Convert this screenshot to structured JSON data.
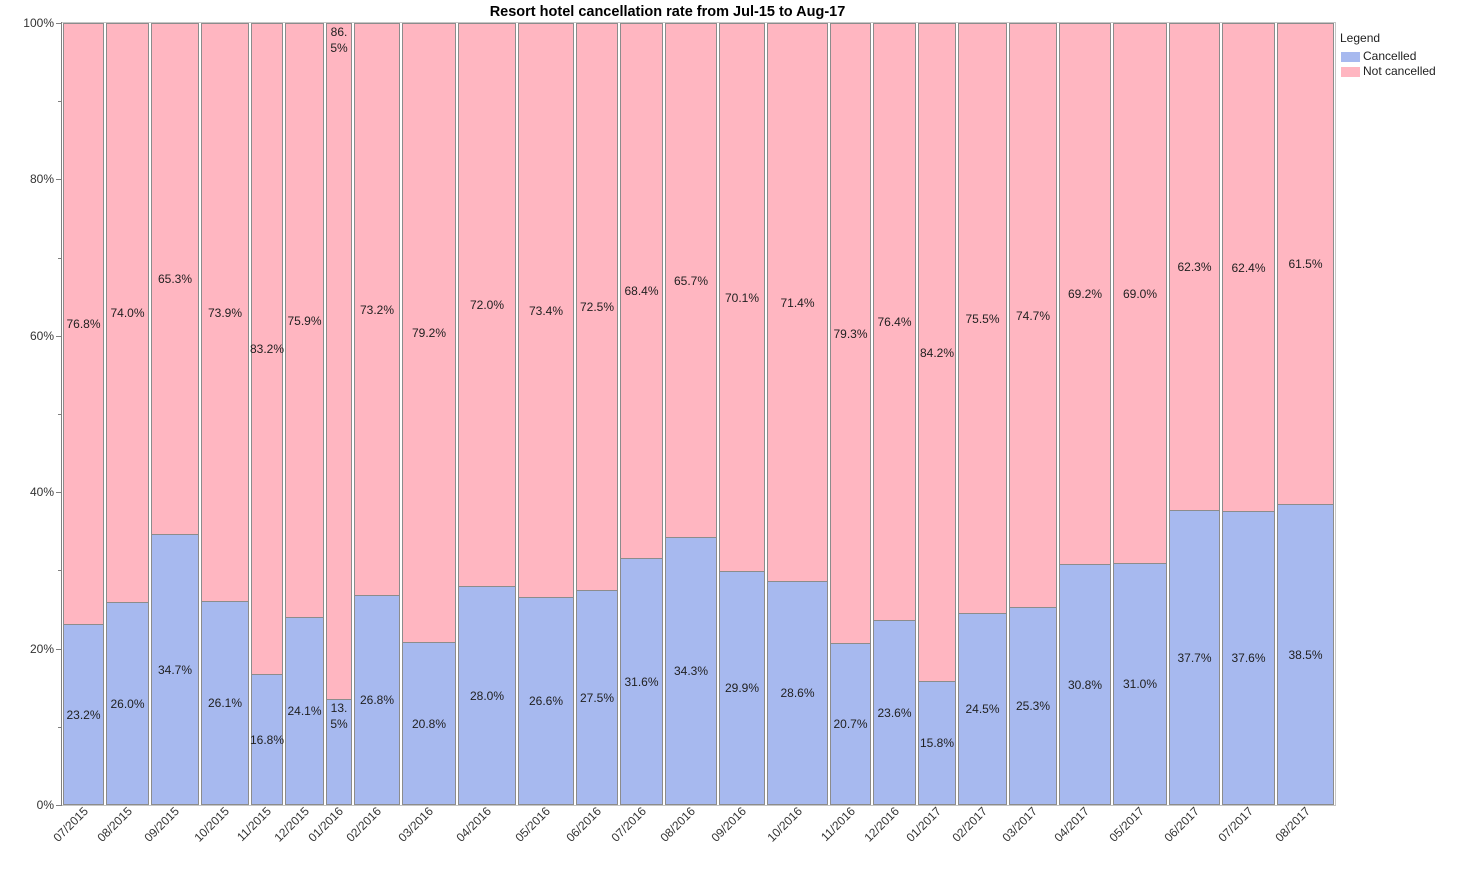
{
  "chart_data": {
    "type": "bar",
    "stacked": true,
    "normalized": true,
    "title": "Resort hotel cancellation rate from Jul-15 to Aug-17",
    "ylim": [
      0,
      100
    ],
    "yticks": [
      "0%",
      "20%",
      "40%",
      "60%",
      "80%",
      "100%"
    ],
    "grid": false,
    "legend": {
      "title": "Legend",
      "position": "right"
    },
    "categories": [
      "07/2015",
      "08/2015",
      "09/2015",
      "10/2015",
      "11/2015",
      "12/2015",
      "01/2016",
      "02/2016",
      "03/2016",
      "04/2016",
      "05/2016",
      "06/2016",
      "07/2016",
      "08/2016",
      "09/2016",
      "10/2016",
      "11/2016",
      "12/2016",
      "01/2017",
      "02/2017",
      "03/2017",
      "04/2017",
      "05/2017",
      "06/2017",
      "07/2017",
      "08/2017"
    ],
    "share": [
      3.4,
      3.5,
      3.9,
      3.9,
      2.7,
      3.2,
      2.2,
      3.8,
      4.4,
      4.7,
      4.5,
      3.5,
      3.5,
      4.2,
      3.8,
      4.9,
      3.4,
      3.5,
      3.2,
      4.0,
      3.9,
      4.2,
      4.4,
      4.2,
      4.3,
      4.6
    ],
    "series": [
      {
        "name": "Cancelled",
        "color": "#a7b9ef",
        "values": [
          23.2,
          26.0,
          34.7,
          26.1,
          16.8,
          24.1,
          13.5,
          26.8,
          20.8,
          28.0,
          26.6,
          27.5,
          31.6,
          34.3,
          29.9,
          28.6,
          20.7,
          23.6,
          15.8,
          24.5,
          25.3,
          30.8,
          31.0,
          37.7,
          37.6,
          38.5
        ],
        "labels": [
          "23.2%",
          "26.0%",
          "34.7%",
          "26.1%",
          "16.8%",
          "24.1%",
          "13.5%",
          "26.8%",
          "20.8%",
          "28.0%",
          "26.6%",
          "27.5%",
          "31.6%",
          "34.3%",
          "29.9%",
          "28.6%",
          "20.7%",
          "23.6%",
          "15.8%",
          "24.5%",
          "25.3%",
          "30.8%",
          "31.0%",
          "37.7%",
          "37.6%",
          "38.5%"
        ]
      },
      {
        "name": "Not cancelled",
        "color": "#ffb6c1",
        "values": [
          76.8,
          74.0,
          65.3,
          73.9,
          83.2,
          75.9,
          86.5,
          73.2,
          79.2,
          72.0,
          73.4,
          72.5,
          68.4,
          65.7,
          70.1,
          71.4,
          79.3,
          76.4,
          84.2,
          75.5,
          74.7,
          69.2,
          69.0,
          62.3,
          62.4,
          61.5
        ],
        "labels": [
          "76.8%",
          "74.0%",
          "65.3%",
          "73.9%",
          "83.2%",
          "75.9%",
          "86.5%",
          "73.2%",
          "79.2%",
          "72.0%",
          "73.4%",
          "72.5%",
          "68.4%",
          "65.7%",
          "70.1%",
          "71.4%",
          "79.3%",
          "76.4%",
          "84.2%",
          "75.5%",
          "74.7%",
          "69.2%",
          "69.0%",
          "62.3%",
          "62.4%",
          "61.5%"
        ]
      }
    ]
  }
}
